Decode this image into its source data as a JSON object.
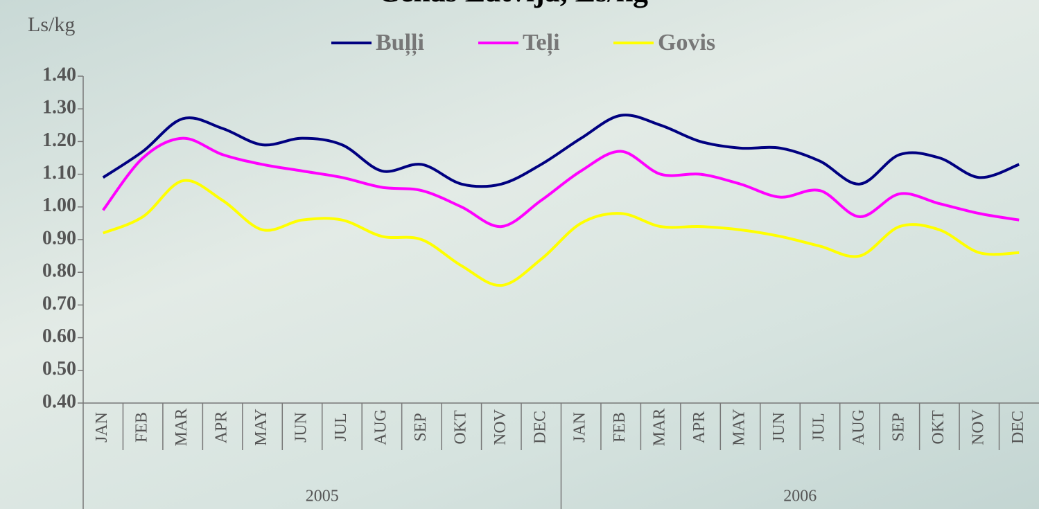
{
  "chart_data": {
    "type": "line",
    "title": "Cenas Latvijā, Ls/kg",
    "y_label": "Ls/kg",
    "categories": [
      "JAN",
      "FEB",
      "MAR",
      "APR",
      "MAY",
      "JUN",
      "JUL",
      "AUG",
      "SEP",
      "OKT",
      "NOV",
      "DEC",
      "JAN",
      "FEB",
      "MAR",
      "APR",
      "MAY",
      "JUN",
      "JUL",
      "AUG",
      "SEP",
      "OKT",
      "NOV",
      "DEC"
    ],
    "years": [
      "2005",
      "2006"
    ],
    "series": [
      {
        "name": "Buļļi",
        "color": "#000080",
        "values": [
          1.09,
          1.17,
          1.27,
          1.24,
          1.19,
          1.21,
          1.19,
          1.11,
          1.13,
          1.07,
          1.07,
          1.13,
          1.21,
          1.28,
          1.25,
          1.2,
          1.18,
          1.18,
          1.14,
          1.07,
          1.16,
          1.15,
          1.09,
          1.13
        ]
      },
      {
        "name": "Teļi",
        "color": "#ff00ff",
        "values": [
          0.99,
          1.15,
          1.21,
          1.16,
          1.13,
          1.11,
          1.09,
          1.06,
          1.05,
          1.0,
          0.94,
          1.02,
          1.11,
          1.17,
          1.1,
          1.1,
          1.07,
          1.03,
          1.05,
          0.97,
          1.04,
          1.01,
          0.98,
          0.96
        ]
      },
      {
        "name": "Govis",
        "color": "#ffff00",
        "values": [
          0.92,
          0.97,
          1.08,
          1.02,
          0.93,
          0.96,
          0.96,
          0.91,
          0.9,
          0.82,
          0.76,
          0.84,
          0.95,
          0.98,
          0.94,
          0.94,
          0.93,
          0.91,
          0.88,
          0.85,
          0.94,
          0.93,
          0.86,
          0.86
        ]
      }
    ],
    "ylim": [
      0.4,
      1.4
    ],
    "yticks": [
      {
        "value": 0.4,
        "label": "0.40"
      },
      {
        "value": 0.5,
        "label": "0.50"
      },
      {
        "value": 0.6,
        "label": "0.60"
      },
      {
        "value": 0.7,
        "label": "0.70"
      },
      {
        "value": 0.8,
        "label": "0.80"
      },
      {
        "value": 0.9,
        "label": "0.90"
      },
      {
        "value": 1.0,
        "label": "1.00"
      },
      {
        "value": 1.1,
        "label": "1.10"
      },
      {
        "value": 1.2,
        "label": "1.20"
      },
      {
        "value": 1.3,
        "label": "1.30"
      },
      {
        "value": 1.4,
        "label": "1.40"
      }
    ],
    "legend": "top"
  }
}
